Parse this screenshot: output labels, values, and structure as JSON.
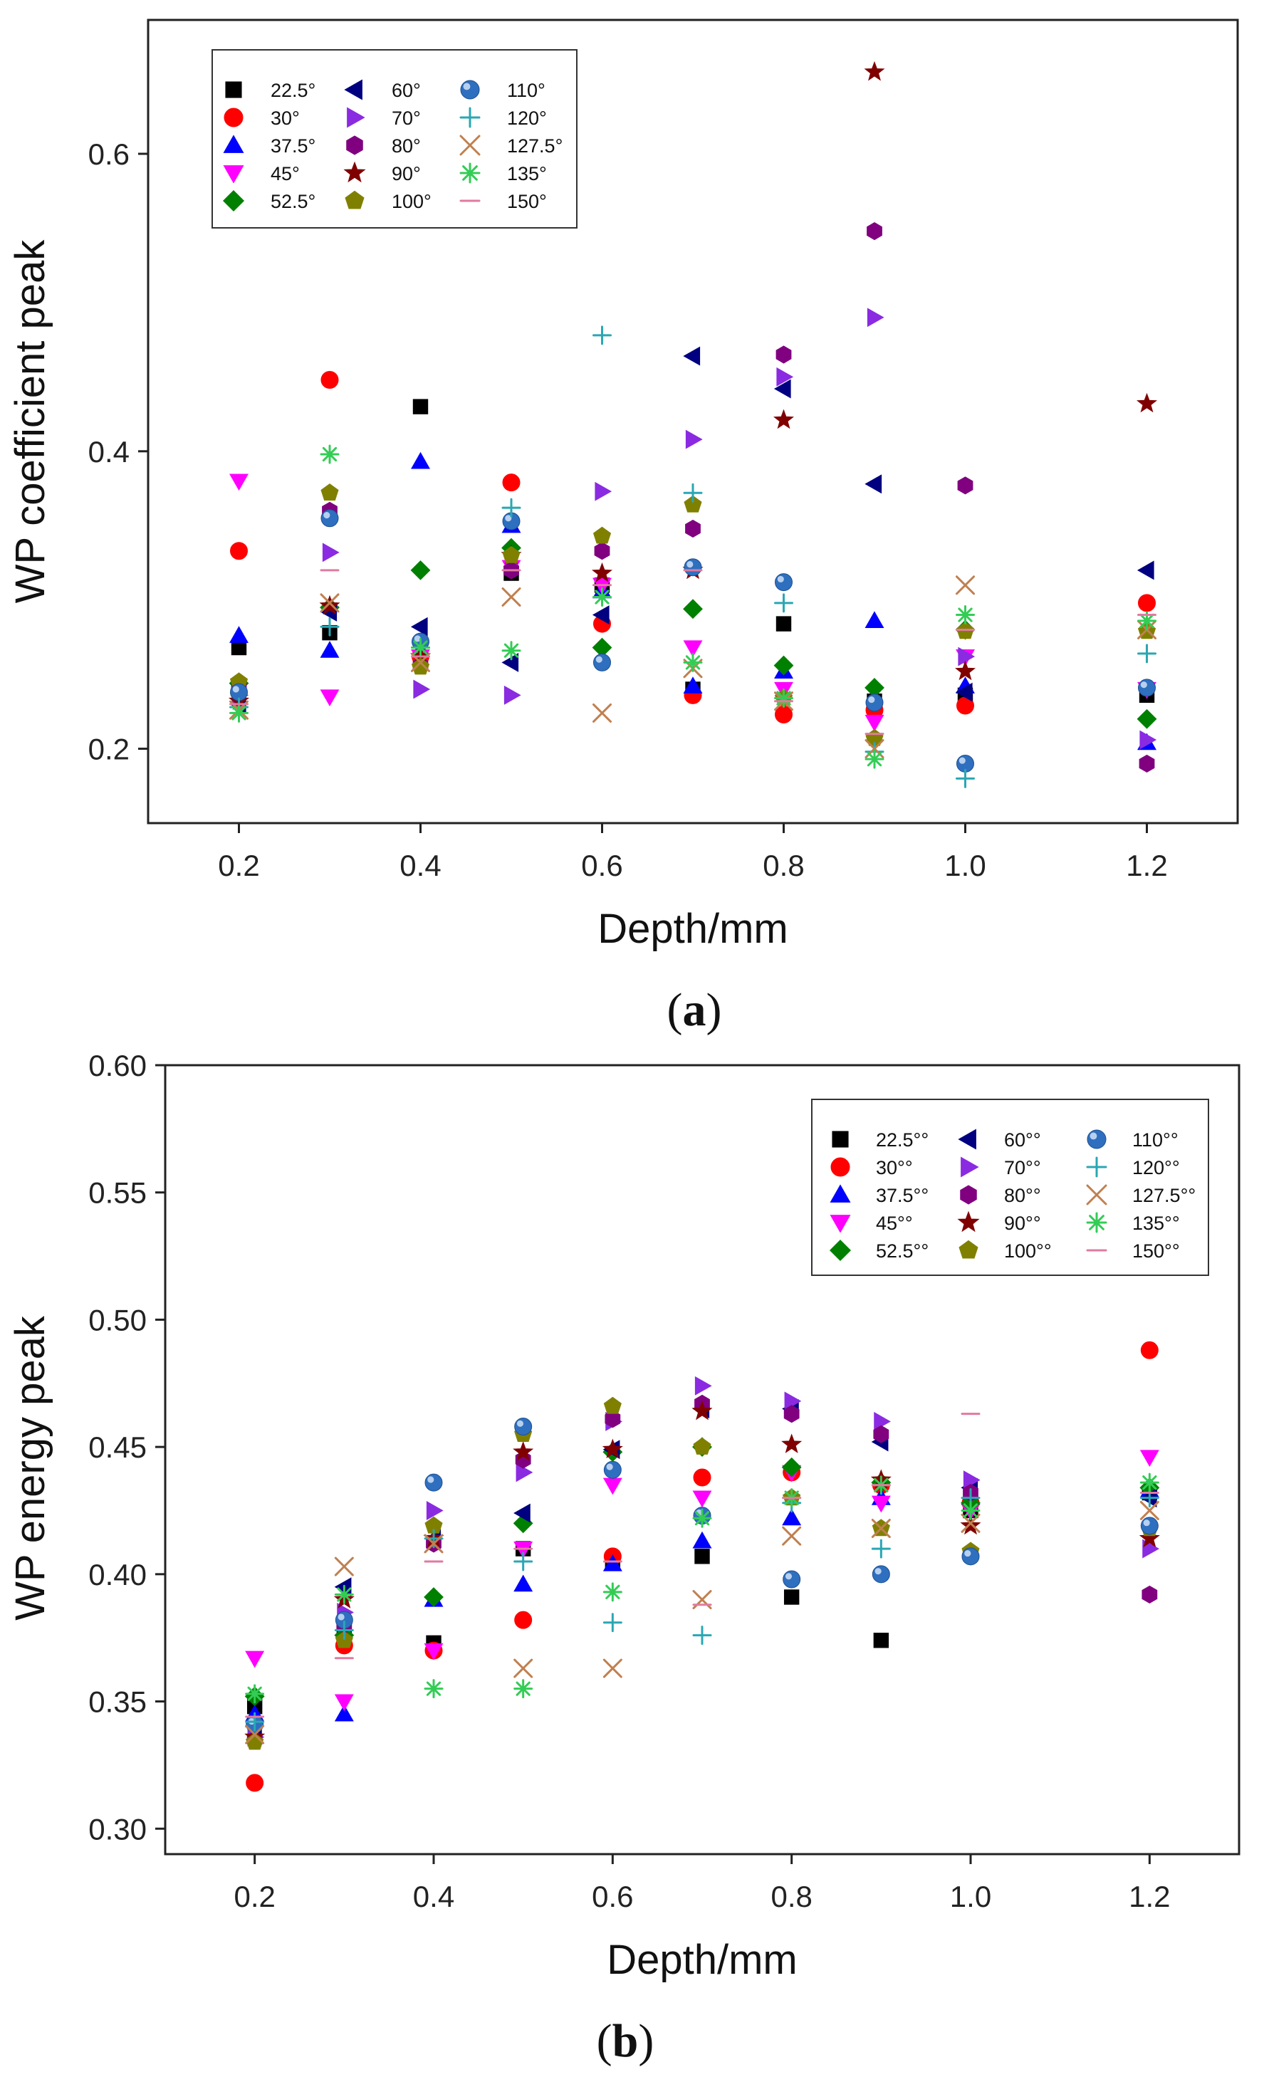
{
  "legend_markers": {
    "22.5": {
      "shape": "square",
      "color": "#000000"
    },
    "30": {
      "shape": "circle",
      "color": "#ff0000"
    },
    "37.5": {
      "shape": "triangle-up",
      "color": "#0000ff"
    },
    "45": {
      "shape": "triangle-down",
      "color": "#ff00ff"
    },
    "52.5": {
      "shape": "diamond",
      "color": "#008000"
    },
    "60": {
      "shape": "triangle-left",
      "color": "#000080"
    },
    "70": {
      "shape": "triangle-right",
      "color": "#8a2be2"
    },
    "80": {
      "shape": "hexagon",
      "color": "#800080"
    },
    "90": {
      "shape": "star",
      "color": "#800000"
    },
    "100": {
      "shape": "pentagon",
      "color": "#808000"
    },
    "110": {
      "shape": "sphere",
      "color": "#2f6fbf"
    },
    "120": {
      "shape": "plus",
      "color": "#2aa7b3"
    },
    "127.5": {
      "shape": "cross",
      "color": "#c08050"
    },
    "135": {
      "shape": "asterisk",
      "color": "#33cc55"
    },
    "150": {
      "shape": "dash",
      "color": "#e07aa0"
    }
  },
  "chart_data": [
    {
      "type": "scatter",
      "panel_label": "(a)",
      "panel_letter": "a",
      "title": "",
      "xlabel": "Depth/mm",
      "ylabel": "WP coefficient peak",
      "xlim": [
        0.1,
        1.3
      ],
      "ylim": [
        0.15,
        0.69
      ],
      "xticks": [
        "0.2",
        "0.4",
        "0.6",
        "0.8",
        "1.0",
        "1.2"
      ],
      "yticks": [
        "0.2",
        "0.4",
        "0.6"
      ],
      "legend_position": "top-left",
      "x": [
        0.2,
        0.3,
        0.4,
        0.5,
        0.6,
        0.7,
        0.8,
        0.9,
        1.0,
        1.2
      ],
      "series": [
        {
          "name": "22.5°",
          "key": "22.5",
          "values": [
            0.268,
            0.278,
            0.43,
            0.318,
            0.31,
            0.24,
            0.284,
            0.232,
            0.236,
            0.236
          ]
        },
        {
          "name": "30°",
          "key": "30",
          "values": [
            0.333,
            0.448,
            0.262,
            0.379,
            0.284,
            0.236,
            0.223,
            0.226,
            0.229,
            0.298
          ]
        },
        {
          "name": "37.5°",
          "key": "37.5",
          "values": [
            0.276,
            0.266,
            0.393,
            0.35,
            0.306,
            0.242,
            0.252,
            0.286,
            0.242,
            0.204
          ]
        },
        {
          "name": "45°",
          "key": "45",
          "values": [
            0.38,
            0.235,
            0.262,
            0.322,
            0.31,
            0.268,
            0.24,
            0.218,
            0.262,
            0.24
          ]
        },
        {
          "name": "52.5°",
          "key": "52.5",
          "values": [
            0.244,
            0.295,
            0.32,
            0.335,
            0.268,
            0.294,
            0.256,
            0.241,
            0.28,
            0.22
          ]
        },
        {
          "name": "60°",
          "key": "60",
          "values": [
            0.23,
            0.292,
            0.282,
            0.258,
            0.29,
            0.464,
            0.442,
            0.378,
            0.238,
            0.32
          ]
        },
        {
          "name": "70°",
          "key": "70",
          "values": [
            0.236,
            0.332,
            0.24,
            0.236,
            0.373,
            0.408,
            0.45,
            0.49,
            0.262,
            0.206
          ]
        },
        {
          "name": "80°",
          "key": "80",
          "values": [
            0.242,
            0.36,
            0.256,
            0.32,
            0.333,
            0.348,
            0.465,
            0.548,
            0.377,
            0.19
          ]
        },
        {
          "name": "90°",
          "key": "90",
          "values": [
            0.232,
            0.296,
            0.262,
            0.33,
            0.318,
            0.32,
            0.421,
            0.655,
            0.252,
            0.432
          ]
        },
        {
          "name": "100°",
          "key": "100",
          "values": [
            0.245,
            0.372,
            0.255,
            0.33,
            0.343,
            0.364,
            0.234,
            0.207,
            0.279,
            0.279
          ]
        },
        {
          "name": "110°",
          "key": "110",
          "values": [
            0.238,
            0.355,
            0.272,
            0.353,
            0.258,
            0.322,
            0.312,
            0.231,
            0.19,
            0.241
          ]
        },
        {
          "name": "120°",
          "key": "120",
          "values": [
            0.228,
            0.282,
            0.268,
            0.362,
            0.478,
            0.372,
            0.298,
            0.198,
            0.18,
            0.264
          ]
        },
        {
          "name": "127.5°",
          "key": "127.5",
          "values": [
            0.226,
            0.298,
            0.258,
            0.302,
            0.224,
            0.254,
            0.232,
            0.2,
            0.31,
            0.28
          ]
        },
        {
          "name": "135°",
          "key": "135",
          "values": [
            0.224,
            0.398,
            0.268,
            0.266,
            0.302,
            0.258,
            0.234,
            0.193,
            0.29,
            0.286
          ]
        },
        {
          "name": "150°",
          "key": "150",
          "values": [
            0.23,
            0.32,
            0.262,
            0.32,
            0.31,
            0.32,
            0.232,
            0.21,
            0.28,
            0.29
          ]
        }
      ]
    },
    {
      "type": "scatter",
      "panel_label": "(b)",
      "panel_letter": "b",
      "title": "",
      "xlabel": "Depth/mm",
      "ylabel": "WP energy peak",
      "xlim": [
        0.1,
        1.3
      ],
      "ylim": [
        0.29,
        0.6
      ],
      "xticks": [
        "0.2",
        "0.4",
        "0.6",
        "0.8",
        "1.0",
        "1.2"
      ],
      "yticks": [
        "0.30",
        "0.35",
        "0.40",
        "0.45",
        "0.50",
        "0.55",
        "0.60"
      ],
      "legend_position": "top-right",
      "x": [
        0.2,
        0.3,
        0.4,
        0.5,
        0.6,
        0.7,
        0.8,
        0.9,
        1.0,
        1.2
      ],
      "series": [
        {
          "name": "22.5°°",
          "key": "22.5",
          "values": [
            0.348,
            0.375,
            0.373,
            0.41,
            0.405,
            0.407,
            0.391,
            0.374,
            0.425,
            0.432
          ]
        },
        {
          "name": "30°°",
          "key": "30",
          "values": [
            0.318,
            0.372,
            0.37,
            0.382,
            0.407,
            0.438,
            0.44,
            0.435,
            0.428,
            0.488
          ]
        },
        {
          "name": "37.5°°",
          "key": "37.5",
          "values": [
            0.345,
            0.345,
            0.39,
            0.396,
            0.404,
            0.413,
            0.422,
            0.43,
            0.43,
            0.433
          ]
        },
        {
          "name": "45°°",
          "key": "45",
          "values": [
            0.367,
            0.35,
            0.37,
            0.41,
            0.435,
            0.43,
            0.44,
            0.428,
            0.425,
            0.446
          ]
        },
        {
          "name": "52.5°°",
          "key": "52.5",
          "values": [
            0.352,
            0.376,
            0.391,
            0.42,
            0.448,
            0.45,
            0.442,
            0.436,
            0.428,
            0.434
          ]
        },
        {
          "name": "60°°",
          "key": "60",
          "values": [
            0.34,
            0.395,
            0.414,
            0.424,
            0.449,
            0.465,
            0.465,
            0.452,
            0.434,
            0.43
          ]
        },
        {
          "name": "70°°",
          "key": "70",
          "values": [
            0.336,
            0.385,
            0.425,
            0.44,
            0.46,
            0.474,
            0.468,
            0.46,
            0.437,
            0.41
          ]
        },
        {
          "name": "80°°",
          "key": "80",
          "values": [
            0.335,
            0.38,
            0.412,
            0.445,
            0.461,
            0.467,
            0.463,
            0.455,
            0.432,
            0.392
          ]
        },
        {
          "name": "90°°",
          "key": "90",
          "values": [
            0.336,
            0.39,
            0.414,
            0.448,
            0.449,
            0.464,
            0.451,
            0.437,
            0.419,
            0.414
          ]
        },
        {
          "name": "100°°",
          "key": "100",
          "values": [
            0.334,
            0.374,
            0.419,
            0.455,
            0.466,
            0.45,
            0.43,
            0.418,
            0.409,
            0.418
          ]
        },
        {
          "name": "110°°",
          "key": "110",
          "values": [
            0.341,
            0.382,
            0.436,
            0.458,
            0.441,
            0.423,
            0.398,
            0.4,
            0.407,
            0.419
          ]
        },
        {
          "name": "120°°",
          "key": "120",
          "values": [
            0.342,
            0.378,
            0.414,
            0.405,
            0.381,
            0.376,
            0.428,
            0.41,
            0.43,
            0.43
          ]
        },
        {
          "name": "127.5°°",
          "key": "127.5",
          "values": [
            0.337,
            0.403,
            0.412,
            0.363,
            0.363,
            0.39,
            0.415,
            0.418,
            0.42,
            0.425
          ]
        },
        {
          "name": "135°°",
          "key": "135",
          "values": [
            0.353,
            0.392,
            0.355,
            0.355,
            0.393,
            0.422,
            0.43,
            0.435,
            0.425,
            0.436
          ]
        },
        {
          "name": "150°°",
          "key": "150",
          "values": [
            0.344,
            0.367,
            0.405,
            0.41,
            0.405,
            0.388,
            0.43,
            0.435,
            0.463,
            0.432
          ]
        }
      ]
    }
  ]
}
